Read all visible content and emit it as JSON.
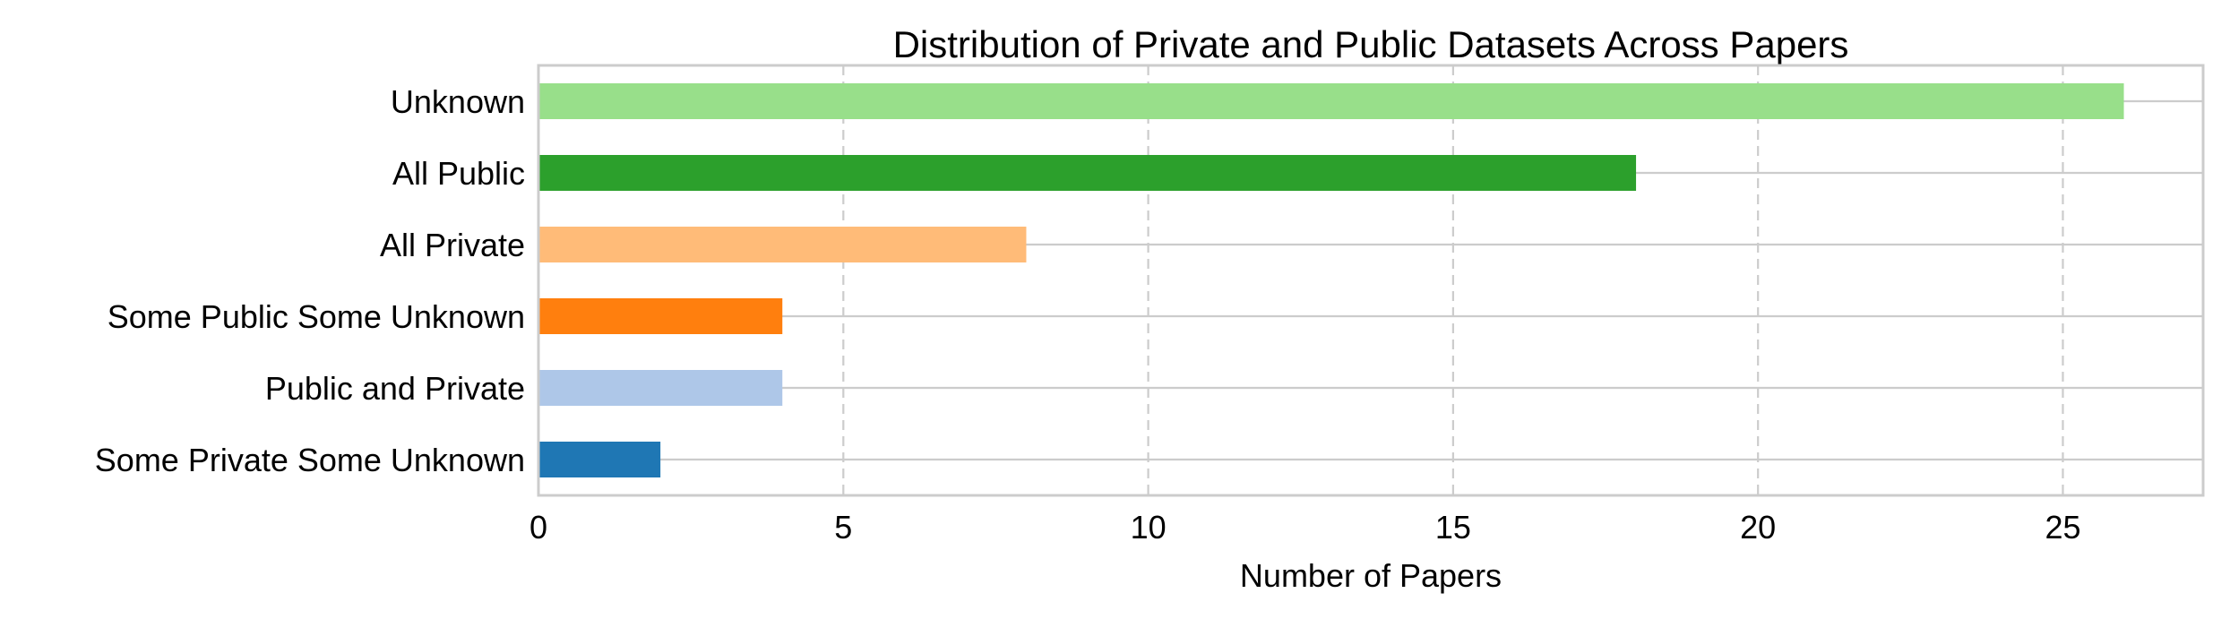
{
  "chart_data": {
    "type": "bar",
    "orientation": "horizontal",
    "title": "Distribution of Private and Public Datasets Across Papers",
    "xlabel": "Number of Papers",
    "ylabel": "",
    "categories": [
      "Some Private Some Unknown",
      "Public and Private",
      "Some Public Some Unknown",
      "All Private",
      "All Public",
      "Unknown"
    ],
    "values": [
      2,
      4,
      4,
      8,
      18,
      26
    ],
    "colors": [
      "#1f77b4",
      "#aec7e8",
      "#ff7f0e",
      "#ffbb78",
      "#2ca02c",
      "#98df8a"
    ],
    "xlim": [
      0,
      27.3
    ],
    "xticks": [
      0,
      5,
      10,
      15,
      20,
      25
    ],
    "grid": true,
    "legend": "none"
  }
}
